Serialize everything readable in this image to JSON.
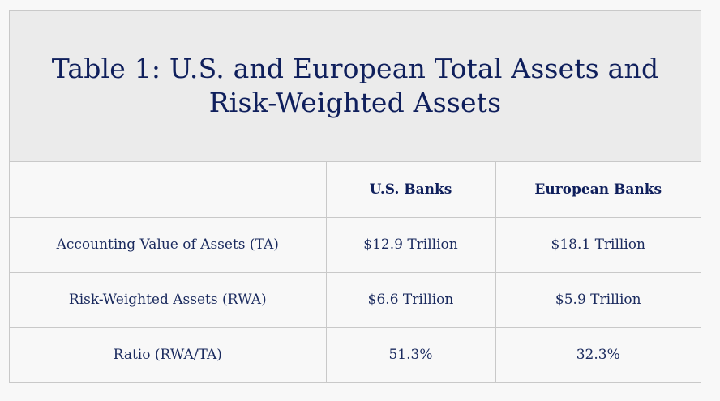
{
  "title": "Table 1: U.S. and European Total Assets and Risk-Weighted Assets",
  "table": {
    "headers": [
      "",
      "U.S. Banks",
      "European Banks"
    ],
    "rows": [
      [
        "Accounting Value of Assets (TA)",
        "$12.9 Trillion",
        "$18.1 Trillion"
      ],
      [
        "Risk-Weighted Assets (RWA)",
        "$6.6 Trillion",
        "$5.9 Trillion"
      ],
      [
        "Ratio (RWA/TA)",
        "51.3%",
        "32.3%"
      ]
    ]
  }
}
